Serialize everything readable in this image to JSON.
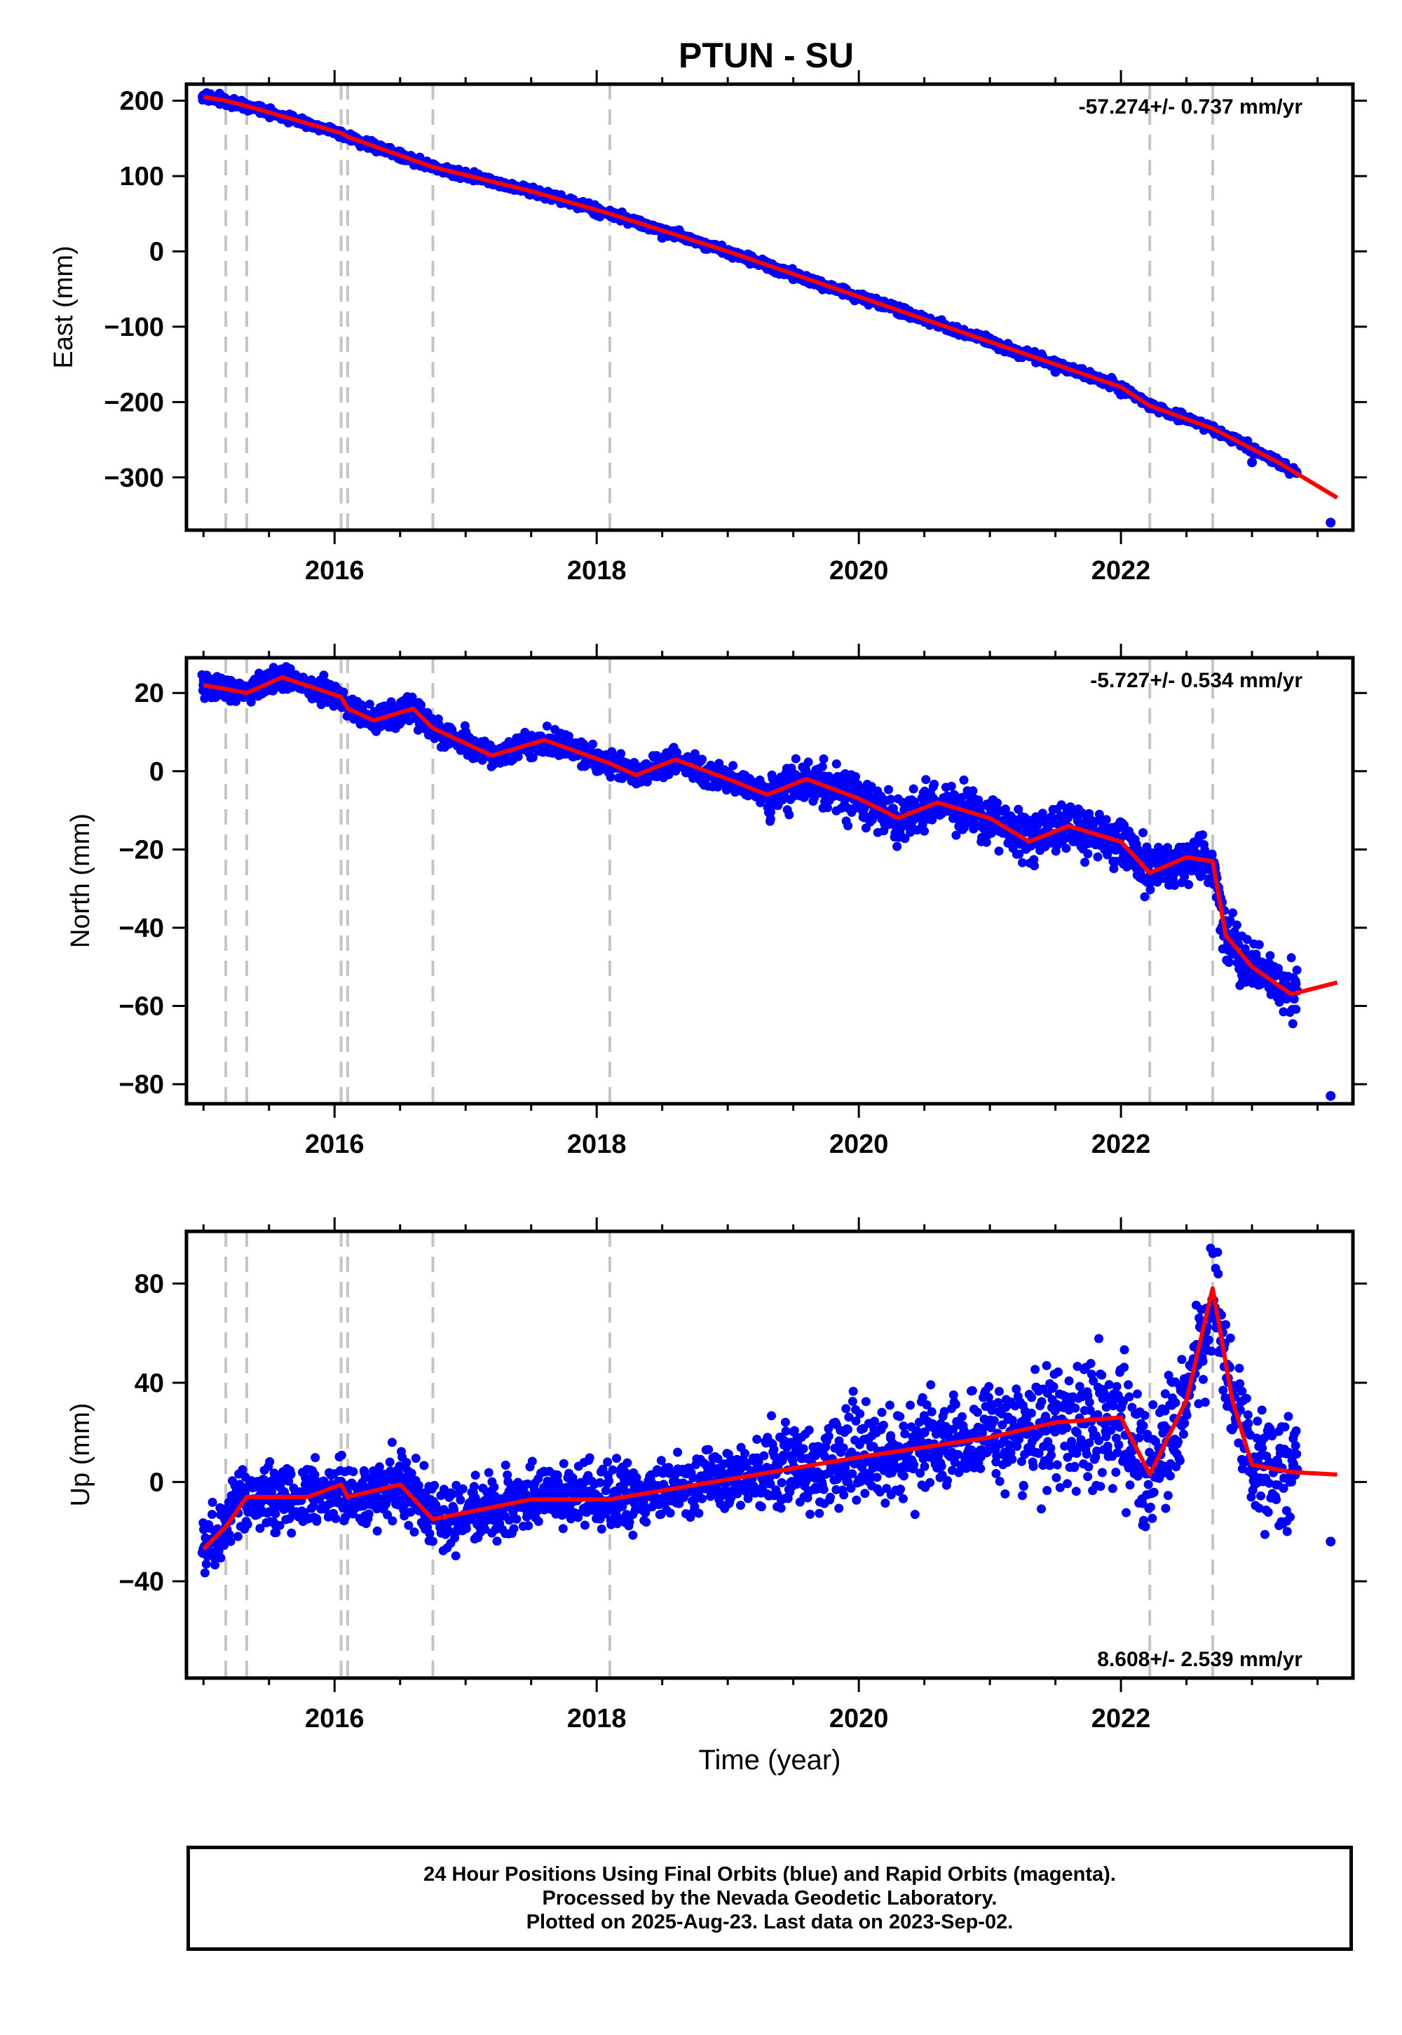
{
  "title": "PTUN - SU",
  "colors": {
    "points": "#0000ff",
    "model": "#ff0000",
    "event_lines": "#c4c4c4",
    "frame": "#000000"
  },
  "chart_data": [
    {
      "type": "scatter",
      "component": "East",
      "ylabel": "East (mm)",
      "xlabel": "",
      "xlim": [
        2014.87,
        2023.77
      ],
      "ylim": [
        -370,
        222
      ],
      "xticks": [
        2016,
        2018,
        2020,
        2022
      ],
      "yticks": [
        -300,
        -200,
        -100,
        0,
        100,
        200
      ],
      "rate_label": "-57.274+/- 0.737 mm/yr",
      "rate_position": "top-right",
      "event_lines": [
        2015.17,
        2015.33,
        2016.05,
        2016.1,
        2016.75,
        2018.1,
        2022.22,
        2022.7
      ],
      "model": {
        "x": [
          2015.0,
          2015.17,
          2015.33,
          2016.05,
          2016.1,
          2016.75,
          2017.5,
          2018.1,
          2019.0,
          2020.0,
          2021.0,
          2022.0,
          2022.22,
          2022.7,
          2023.2,
          2023.65
        ],
        "y": [
          205,
          200,
          193,
          157,
          152,
          112,
          80,
          50,
          0,
          -60,
          -120,
          -180,
          -205,
          -235,
          -280,
          -327
        ]
      },
      "points_sample": {
        "x": [
          2015.0,
          2015.5,
          2016.0,
          2016.5,
          2017.0,
          2017.5,
          2018.0,
          2018.5,
          2019.0,
          2019.5,
          2020.0,
          2020.5,
          2021.0,
          2021.5,
          2022.0,
          2022.5,
          2023.0,
          2023.6
        ],
        "y": [
          207,
          183,
          158,
          128,
          106,
          76,
          48,
          18,
          -3,
          -37,
          -63,
          -90,
          -120,
          -160,
          -190,
          -225,
          -280,
          -360
        ]
      }
    },
    {
      "type": "scatter",
      "component": "North",
      "ylabel": "North (mm)",
      "xlabel": "",
      "xlim": [
        2014.87,
        2023.77
      ],
      "ylim": [
        -85,
        29
      ],
      "xticks": [
        2016,
        2018,
        2020,
        2022
      ],
      "yticks": [
        -80,
        -60,
        -40,
        -20,
        0,
        20
      ],
      "rate_label": "-5.727+/- 0.534 mm/yr",
      "rate_position": "top-right",
      "event_lines": [
        2015.17,
        2015.33,
        2016.05,
        2016.1,
        2016.75,
        2018.1,
        2022.22,
        2022.7
      ],
      "model": {
        "x": [
          2015.0,
          2015.17,
          2015.33,
          2015.6,
          2016.05,
          2016.1,
          2016.3,
          2016.6,
          2016.75,
          2017.2,
          2017.6,
          2018.1,
          2018.3,
          2018.6,
          2019.0,
          2019.3,
          2019.6,
          2020.0,
          2020.3,
          2020.6,
          2021.0,
          2021.3,
          2021.6,
          2022.0,
          2022.22,
          2022.5,
          2022.7,
          2022.8,
          2023.0,
          2023.3,
          2023.65
        ],
        "y": [
          22,
          21,
          20,
          24,
          19,
          16,
          13,
          16,
          11,
          4,
          8,
          2,
          -1,
          3,
          -2,
          -6,
          -2,
          -7,
          -12,
          -8,
          -12,
          -18,
          -14,
          -18,
          -26,
          -22,
          -23,
          -42,
          -50,
          -57,
          -54
        ]
      },
      "points_sample": {
        "x": [
          2015.0,
          2015.5,
          2016.0,
          2016.5,
          2017.0,
          2017.5,
          2018.0,
          2018.5,
          2019.0,
          2019.5,
          2020.0,
          2020.5,
          2021.0,
          2021.5,
          2022.0,
          2022.5,
          2023.0,
          2023.6
        ],
        "y": [
          22,
          24,
          20,
          14,
          10,
          7,
          3,
          2,
          -3,
          -2,
          -8,
          -10,
          -14,
          -16,
          -20,
          -25,
          -50,
          -83
        ]
      }
    },
    {
      "type": "scatter",
      "component": "Up",
      "ylabel": "Up (mm)",
      "xlabel": "Time (year)",
      "xlim": [
        2014.87,
        2023.77
      ],
      "ylim": [
        -79,
        101
      ],
      "xticks": [
        2016,
        2018,
        2020,
        2022
      ],
      "yticks": [
        -40,
        0,
        40,
        80
      ],
      "rate_label": "8.608+/- 2.539 mm/yr",
      "rate_position": "bottom-right",
      "event_lines": [
        2015.17,
        2015.33,
        2016.05,
        2016.1,
        2016.75,
        2018.1,
        2022.22,
        2022.7
      ],
      "model": {
        "x": [
          2015.0,
          2015.17,
          2015.33,
          2015.8,
          2016.05,
          2016.1,
          2016.5,
          2016.75,
          2017.5,
          2018.1,
          2019.0,
          2020.0,
          2021.0,
          2021.5,
          2022.0,
          2022.22,
          2022.5,
          2022.7,
          2022.85,
          2023.0,
          2023.3,
          2023.65
        ],
        "y": [
          -27,
          -18,
          -6,
          -6,
          -1,
          -6,
          -1,
          -15,
          -7,
          -7,
          1,
          10,
          18,
          24,
          26,
          3,
          33,
          78,
          33,
          7,
          4,
          3
        ]
      },
      "points_sample": {
        "x": [
          2015.0,
          2015.5,
          2016.0,
          2016.5,
          2017.0,
          2017.5,
          2018.0,
          2018.5,
          2019.0,
          2019.5,
          2020.0,
          2020.5,
          2021.0,
          2021.5,
          2022.0,
          2022.5,
          2023.0,
          2023.6
        ],
        "y": [
          -27,
          -5,
          -5,
          0,
          -15,
          -8,
          -7,
          -2,
          0,
          5,
          10,
          20,
          15,
          25,
          30,
          35,
          5,
          -24
        ]
      }
    }
  ],
  "footer": {
    "line1": "24 Hour Positions Using Final Orbits (blue) and Rapid Orbits (magenta).",
    "line2": "Processed by the Nevada Geodetic Laboratory.",
    "line3": "Plotted on 2025-Aug-23. Last data on 2023-Sep-02."
  }
}
